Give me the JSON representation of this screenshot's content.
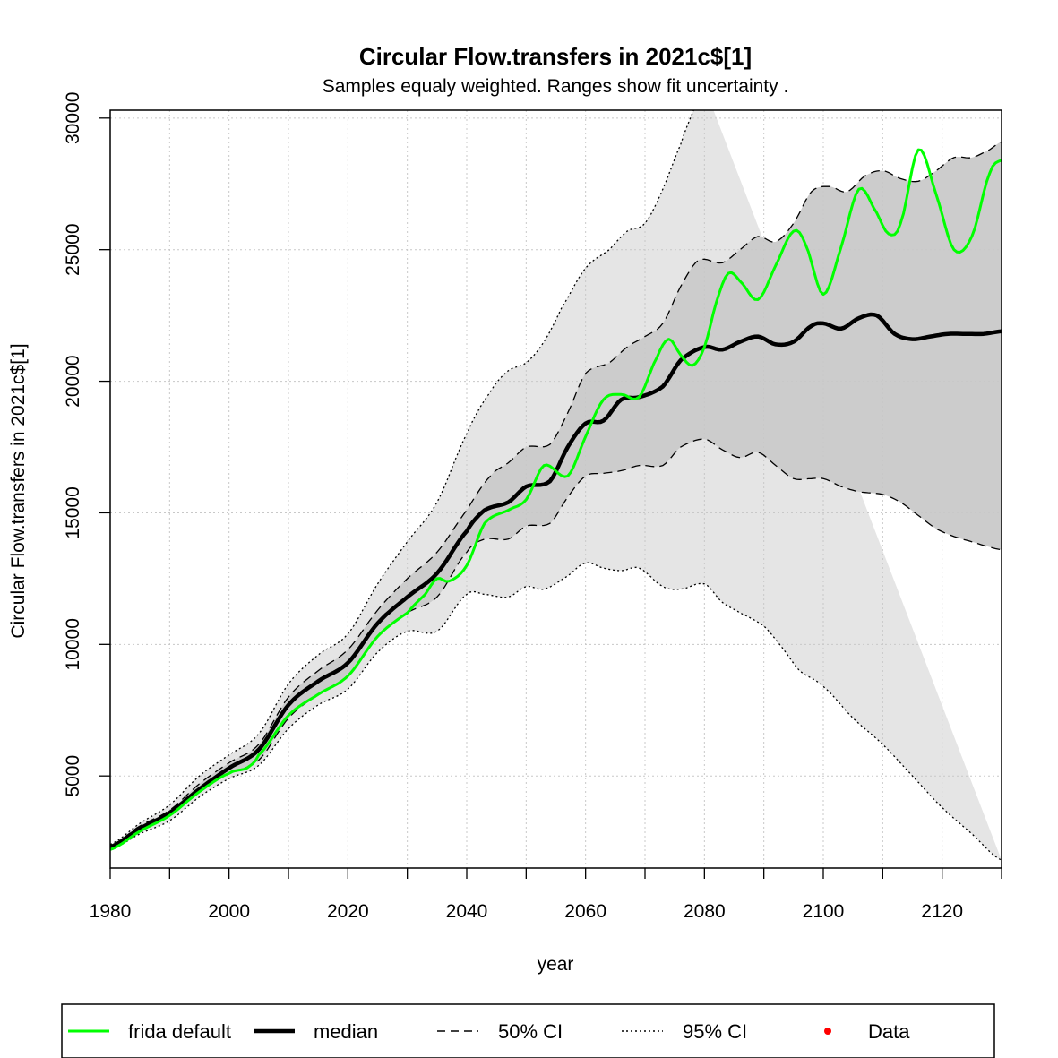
{
  "chart_data": {
    "type": "line",
    "title": "Circular Flow.transfers in 2021c$[1]",
    "subtitle": "Samples equaly weighted. Ranges show  fit uncertainty .",
    "xlabel": "year",
    "ylabel": "Circular Flow.transfers in 2021c$[1]",
    "xlim": [
      1980,
      2130
    ],
    "ylim": [
      1500,
      30300
    ],
    "x_ticks": [
      1980,
      2000,
      2020,
      2040,
      2060,
      2080,
      2100,
      2120
    ],
    "x_minor_ticks": [
      1990,
      2010,
      2030,
      2050,
      2070,
      2090,
      2110,
      2130
    ],
    "y_ticks": [
      5000,
      10000,
      15000,
      20000,
      25000,
      30000
    ],
    "grid": true,
    "legend": {
      "position": "bottom",
      "entries": [
        {
          "label": "frida default",
          "style": "solid-green"
        },
        {
          "label": "median",
          "style": "solid-thick-black"
        },
        {
          "label": "50% CI",
          "style": "dashed"
        },
        {
          "label": "95% CI",
          "style": "dotted"
        },
        {
          "label": "Data",
          "style": "red-point"
        }
      ]
    },
    "colors": {
      "frida_default": "#00ff00",
      "median": "#000000",
      "ci50_fill": "#cccccc",
      "ci95_fill": "#e5e5e5",
      "data_point": "#ff0000",
      "grid": "#c8c8c8"
    },
    "series": [
      {
        "name": "frida default",
        "x": [
          1980,
          1985,
          1990,
          1995,
          2000,
          2003,
          2005,
          2010,
          2015,
          2020,
          2025,
          2030,
          2033,
          2035,
          2037,
          2040,
          2043,
          2047,
          2050,
          2053,
          2057,
          2060,
          2063,
          2066,
          2069,
          2072,
          2074,
          2076,
          2078,
          2080,
          2082,
          2084,
          2086,
          2089,
          2092,
          2095,
          2097,
          2100,
          2103,
          2106,
          2109,
          2111,
          2113,
          2116,
          2119,
          2122,
          2125,
          2128,
          2130
        ],
        "y": [
          2200,
          2900,
          3500,
          4400,
          5100,
          5300,
          5800,
          7300,
          8100,
          8800,
          10300,
          11200,
          11900,
          12500,
          12400,
          13000,
          14600,
          15100,
          15500,
          16800,
          16400,
          17900,
          19300,
          19500,
          19400,
          20900,
          21600,
          21000,
          20600,
          21300,
          23000,
          24100,
          23800,
          23100,
          24400,
          25700,
          25200,
          23300,
          25100,
          27300,
          26400,
          25600,
          26000,
          28800,
          27100,
          25000,
          25500,
          27900,
          28400
        ]
      },
      {
        "name": "median",
        "x": [
          1980,
          1985,
          1990,
          1995,
          2000,
          2005,
          2010,
          2015,
          2020,
          2025,
          2030,
          2035,
          2040,
          2043,
          2047,
          2050,
          2054,
          2057,
          2060,
          2063,
          2066,
          2069,
          2073,
          2076,
          2080,
          2083,
          2086,
          2089,
          2092,
          2095,
          2098,
          2100,
          2103,
          2106,
          2109,
          2112,
          2115,
          2118,
          2121,
          2124,
          2127,
          2130
        ],
        "y": [
          2300,
          3000,
          3600,
          4500,
          5300,
          6000,
          7700,
          8600,
          9300,
          10800,
          11800,
          12700,
          14300,
          15100,
          15400,
          16000,
          16200,
          17500,
          18400,
          18500,
          19300,
          19400,
          19800,
          20800,
          21300,
          21200,
          21500,
          21700,
          21400,
          21500,
          22100,
          22200,
          22000,
          22400,
          22500,
          21800,
          21600,
          21700,
          21800,
          21800,
          21800,
          21900
        ]
      },
      {
        "name": "50% CI upper",
        "x": [
          1980,
          1985,
          1990,
          1995,
          2000,
          2005,
          2010,
          2015,
          2020,
          2025,
          2030,
          2035,
          2040,
          2044,
          2047,
          2050,
          2054,
          2057,
          2060,
          2064,
          2067,
          2070,
          2073,
          2076,
          2079,
          2083,
          2086,
          2089,
          2092,
          2095,
          2098,
          2101,
          2104,
          2107,
          2110,
          2113,
          2116,
          2119,
          2122,
          2125,
          2128,
          2130
        ],
        "y": [
          2350,
          3100,
          3700,
          4700,
          5500,
          6200,
          8000,
          9000,
          9800,
          11300,
          12500,
          13500,
          15100,
          16400,
          16900,
          17500,
          17600,
          18800,
          20300,
          20700,
          21300,
          21700,
          22200,
          23600,
          24600,
          24500,
          25000,
          25500,
          25300,
          26000,
          27200,
          27400,
          27200,
          27800,
          28000,
          27700,
          27600,
          28000,
          28500,
          28500,
          28800,
          29100
        ]
      },
      {
        "name": "50% CI lower",
        "x": [
          1980,
          1985,
          1990,
          1995,
          2000,
          2005,
          2010,
          2015,
          2020,
          2025,
          2030,
          2035,
          2040,
          2043,
          2047,
          2050,
          2054,
          2057,
          2060,
          2063,
          2066,
          2069,
          2073,
          2076,
          2080,
          2083,
          2086,
          2089,
          2092,
          2095,
          2098,
          2100,
          2103,
          2106,
          2110,
          2113,
          2116,
          2119,
          2122,
          2125,
          2128,
          2130
        ],
        "y": [
          2250,
          2900,
          3500,
          4400,
          5100,
          5600,
          7200,
          8100,
          8800,
          10300,
          11200,
          11800,
          13500,
          14000,
          14000,
          14500,
          14600,
          15600,
          16400,
          16500,
          16600,
          16800,
          16800,
          17500,
          17800,
          17400,
          17100,
          17300,
          16800,
          16300,
          16300,
          16300,
          16000,
          15800,
          15700,
          15400,
          14900,
          14400,
          14100,
          13900,
          13700,
          13600
        ]
      },
      {
        "name": "95% CI upper",
        "x": [
          1980,
          1985,
          1990,
          1995,
          2000,
          2005,
          2010,
          2015,
          2020,
          2025,
          2030,
          2035,
          2040,
          2044,
          2047,
          2050,
          2053,
          2056,
          2060,
          2064,
          2067,
          2070,
          2073,
          2076,
          2078,
          2080
        ],
        "y": [
          2400,
          3200,
          3900,
          5000,
          5800,
          6600,
          8500,
          9600,
          10400,
          12300,
          13900,
          15400,
          18000,
          19600,
          20400,
          20700,
          21500,
          22800,
          24300,
          25000,
          25700,
          26000,
          27300,
          29000,
          30200,
          31200
        ]
      },
      {
        "name": "95% CI lower",
        "x": [
          1980,
          1985,
          1990,
          1995,
          2000,
          2005,
          2010,
          2015,
          2020,
          2025,
          2030,
          2035,
          2040,
          2043,
          2047,
          2050,
          2053,
          2057,
          2060,
          2063,
          2066,
          2069,
          2073,
          2076,
          2080,
          2083,
          2086,
          2090,
          2093,
          2096,
          2100,
          2105,
          2110,
          2115,
          2120,
          2125,
          2130
        ],
        "y": [
          2200,
          2800,
          3300,
          4200,
          4900,
          5400,
          6800,
          7700,
          8300,
          9700,
          10500,
          10500,
          11900,
          11900,
          11800,
          12200,
          12100,
          12600,
          13100,
          12900,
          12800,
          12900,
          12200,
          12100,
          12300,
          11600,
          11200,
          10700,
          9900,
          9000,
          8400,
          7200,
          6200,
          5000,
          3800,
          2800,
          1800
        ]
      }
    ]
  }
}
